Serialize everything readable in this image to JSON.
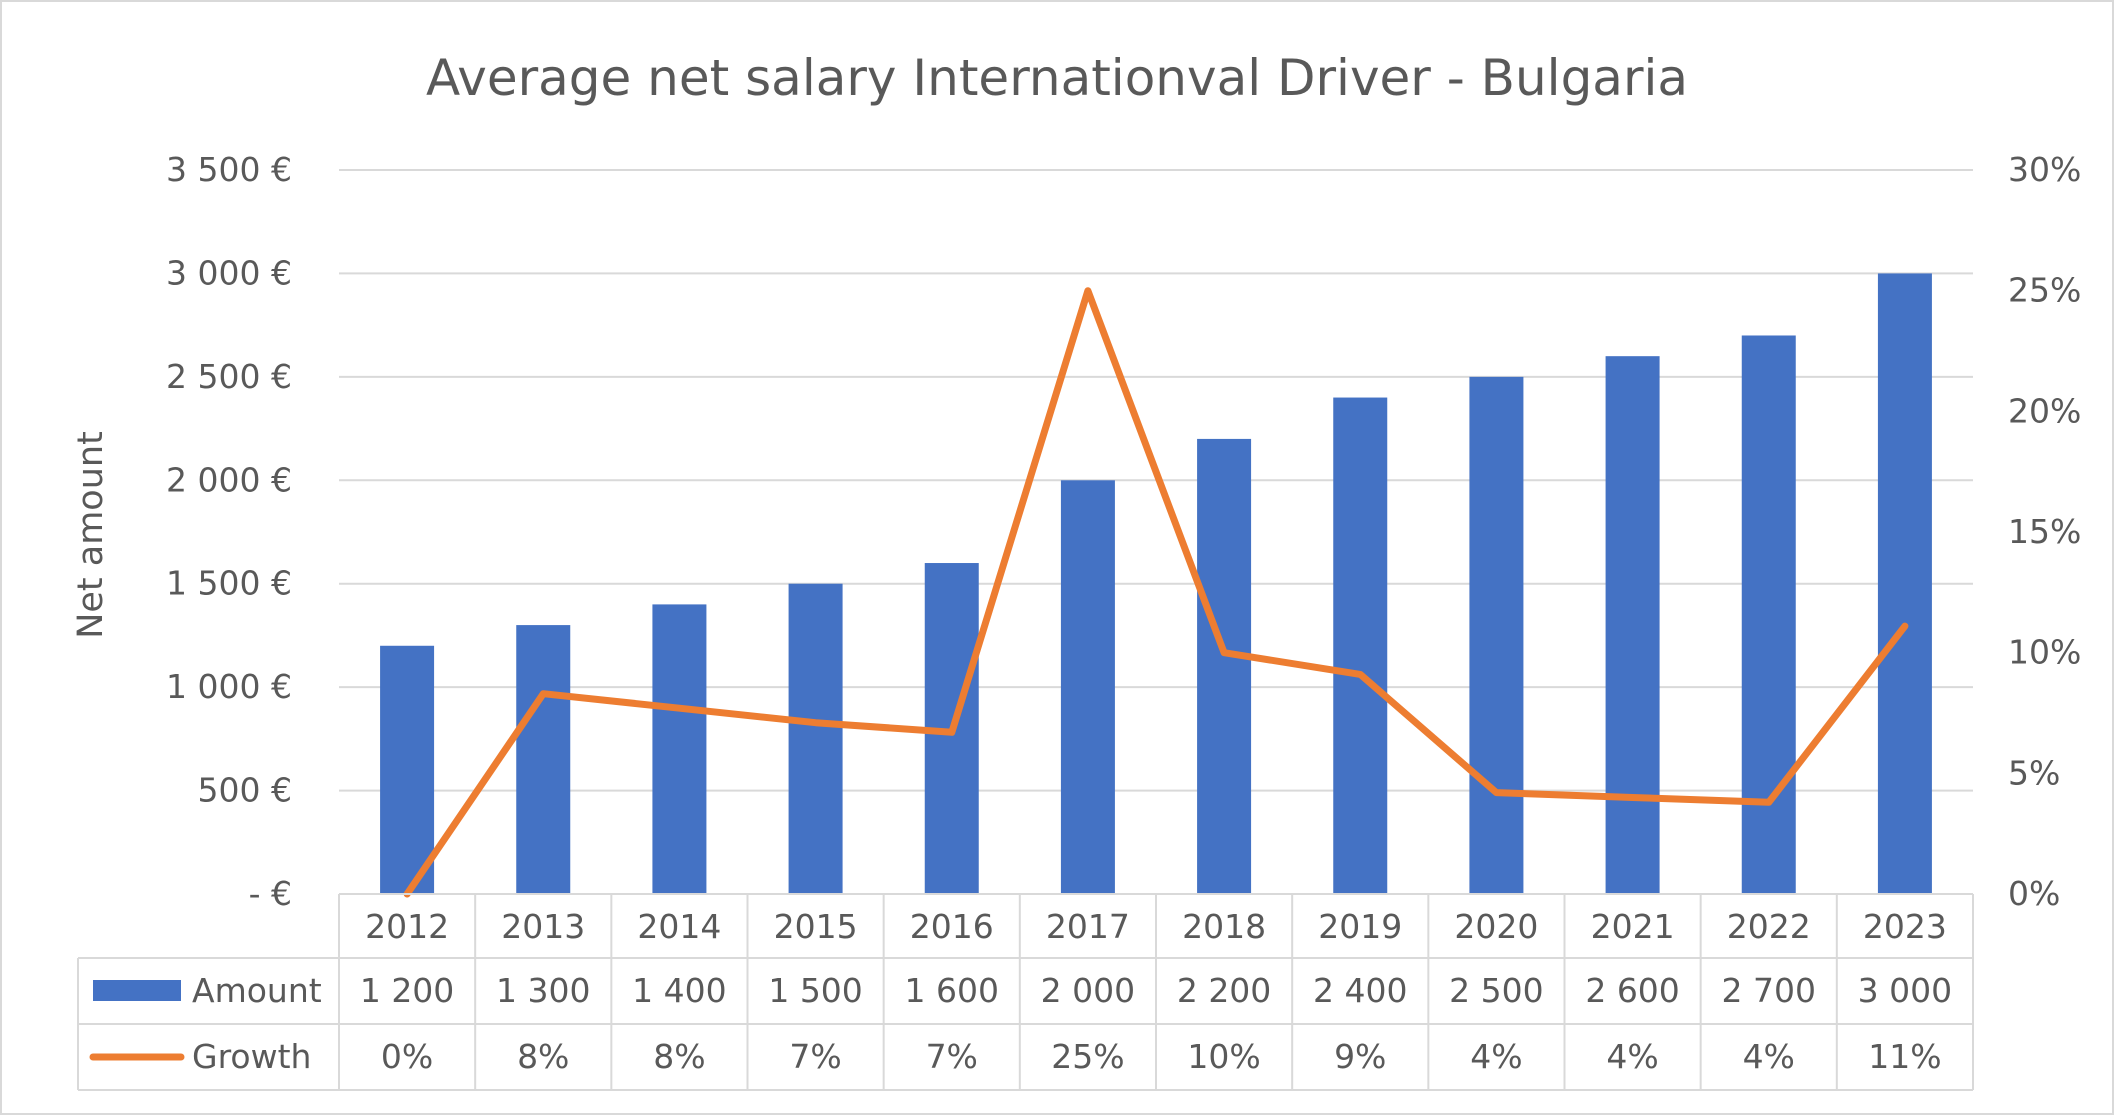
{
  "chart_data": {
    "type": "bar",
    "title": "Average net salary Internationval Driver - Bulgaria",
    "ylabel": "Net amount",
    "categories": [
      "2012",
      "2013",
      "2014",
      "2015",
      "2016",
      "2017",
      "2018",
      "2019",
      "2020",
      "2021",
      "2022",
      "2023"
    ],
    "left_axis": {
      "ylim": [
        0,
        3500
      ],
      "ticks": [
        0,
        500,
        1000,
        1500,
        2000,
        2500,
        3000,
        3500
      ],
      "tick_labels": [
        "-  €",
        "500 €",
        "1 000 €",
        "1 500 €",
        "2 000 €",
        "2 500 €",
        "3 000 €",
        "3 500 €"
      ]
    },
    "right_axis": {
      "ylim": [
        0,
        30
      ],
      "ticks": [
        0,
        5,
        10,
        15,
        20,
        25,
        30
      ],
      "tick_labels": [
        "0%",
        "5%",
        "10%",
        "15%",
        "20%",
        "25%",
        "30%"
      ]
    },
    "series": [
      {
        "name": "Amount",
        "type": "bar",
        "axis": "left",
        "color": "#4472C4",
        "values": [
          1200,
          1300,
          1400,
          1500,
          1600,
          2000,
          2200,
          2400,
          2500,
          2600,
          2700,
          3000
        ],
        "value_labels": [
          "1 200",
          "1 300",
          "1 400",
          "1 500",
          "1 600",
          "2 000",
          "2 200",
          "2 400",
          "2 500",
          "2 600",
          "2 700",
          "3 000"
        ]
      },
      {
        "name": "Growth",
        "type": "line",
        "axis": "right",
        "color": "#ED7D31",
        "values": [
          0,
          8.3,
          7.7,
          7.1,
          6.7,
          25,
          10,
          9.1,
          4.2,
          4.0,
          3.8,
          11.1
        ],
        "value_labels": [
          "0%",
          "8%",
          "8%",
          "7%",
          "7%",
          "25%",
          "10%",
          "9%",
          "4%",
          "4%",
          "4%",
          "11%"
        ]
      }
    ],
    "grid": true,
    "legend": "data-table"
  }
}
